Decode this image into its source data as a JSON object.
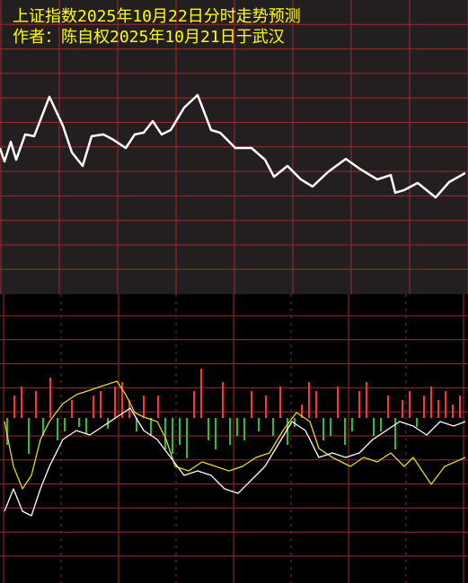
{
  "chart_data": [
    {
      "type": "line",
      "title": "上证指数2025年10月22日分时走势预测",
      "subtitle": "作者：陈自权2025年10月21日于武汉",
      "x": [
        0,
        5,
        12,
        18,
        28,
        38,
        55,
        70,
        80,
        92,
        102,
        115,
        125,
        140,
        150,
        160,
        170,
        180,
        190,
        205,
        220,
        235,
        245,
        262,
        280,
        295,
        305,
        320,
        335,
        348,
        365,
        385,
        400,
        420,
        435,
        440,
        450,
        465,
        485,
        500,
        518
      ],
      "values": [
        49.7,
        45.1,
        51.8,
        45.7,
        54.3,
        53.7,
        67.1,
        57.3,
        48.2,
        43.6,
        53.7,
        54.3,
        52.7,
        49.7,
        54.3,
        54.9,
        58.8,
        54.3,
        55.8,
        63.4,
        67.7,
        55.8,
        54.9,
        49.7,
        49.7,
        45.7,
        39.9,
        43.6,
        39.0,
        36.6,
        41.5,
        46.0,
        42.7,
        39.0,
        40.5,
        34.5,
        35.4,
        37.8,
        32.9,
        38.1,
        41.2
      ],
      "color": "#ffffff",
      "xlim": [
        0,
        518
      ],
      "ylim": [
        0,
        100
      ],
      "grid": true
    },
    {
      "type": "mixed",
      "x": [
        8,
        16,
        24,
        32,
        40,
        48,
        56,
        64,
        72,
        80,
        88,
        96,
        104,
        112,
        120,
        128,
        136,
        144,
        152,
        160,
        168,
        176,
        184,
        192,
        200,
        208,
        216,
        224,
        232,
        240,
        248,
        256,
        264,
        272,
        280,
        288,
        296,
        304,
        312,
        320,
        328,
        336,
        344,
        352,
        360,
        368,
        376,
        384,
        392,
        400,
        408,
        416,
        424,
        432,
        440,
        448,
        456,
        464,
        472,
        480,
        488,
        496,
        504,
        512
      ],
      "values": [
        -30,
        25,
        35,
        -40,
        30,
        -20,
        45,
        -25,
        -15,
        20,
        -10,
        -18,
        25,
        30,
        -12,
        35,
        40,
        20,
        -15,
        25,
        -20,
        25,
        -35,
        -40,
        -30,
        -45,
        30,
        55,
        -25,
        -35,
        40,
        -30,
        -20,
        -25,
        30,
        -15,
        25,
        -20,
        35,
        -30,
        -10,
        15,
        40,
        30,
        -25,
        -20,
        35,
        -30,
        -15,
        30,
        40,
        -20,
        -15,
        25,
        -35,
        20,
        30,
        -10,
        25,
        35,
        20,
        30,
        15,
        25
      ],
      "up_color": "#ff3333",
      "down_color": "#33bb33",
      "series": [
        {
          "color": "#e8d820",
          "x": [
            5,
            15,
            25,
            35,
            45,
            55,
            70,
            85,
            100,
            115,
            130,
            140,
            150,
            160,
            175,
            185,
            195,
            210,
            225,
            240,
            255,
            270,
            285,
            300,
            315,
            330,
            345,
            355,
            370,
            390,
            405,
            420,
            435,
            450,
            460,
            470,
            480,
            495,
            518
          ],
          "values": [
            -4,
            -54,
            -79,
            -64,
            -24,
            -4,
            16,
            26,
            31,
            36,
            41,
            26,
            6,
            1,
            -4,
            -24,
            -54,
            -59,
            -49,
            -54,
            -59,
            -54,
            -44,
            -39,
            -14,
            6,
            -4,
            -34,
            -44,
            -54,
            -44,
            -49,
            -39,
            -54,
            -44,
            -59,
            -74,
            -54,
            -44
          ]
        },
        {
          "color": "#ffffff",
          "x": [
            5,
            15,
            25,
            35,
            45,
            55,
            70,
            85,
            100,
            115,
            130,
            145,
            160,
            175,
            190,
            205,
            220,
            235,
            250,
            265,
            280,
            295,
            310,
            325,
            340,
            355,
            370,
            385,
            400,
            415,
            430,
            445,
            460,
            475,
            490,
            505,
            518
          ],
          "values": [
            -104,
            -79,
            -104,
            -109,
            -79,
            -54,
            -24,
            -14,
            -19,
            -9,
            1,
            11,
            -14,
            -24,
            -44,
            -64,
            -59,
            -64,
            -79,
            -84,
            -69,
            -54,
            -29,
            -4,
            -14,
            -44,
            -39,
            -44,
            -39,
            -24,
            -14,
            -4,
            -9,
            -19,
            -4,
            -9,
            -4
          ]
        }
      ],
      "xlim": [
        0,
        520
      ],
      "ylim": [
        -184,
        138
      ],
      "grid": true
    }
  ]
}
